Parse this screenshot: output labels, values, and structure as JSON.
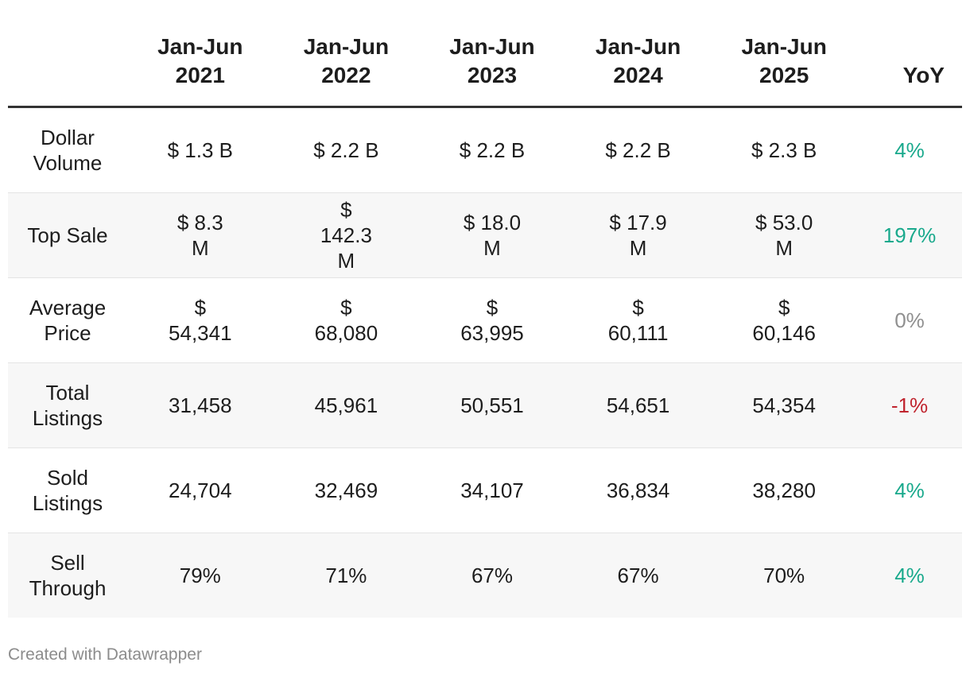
{
  "colors": {
    "positive": "#19a98c",
    "negative": "#c0252f",
    "neutral": "#8f8f8f",
    "text": "#1d1d1d"
  },
  "chart_data": {
    "type": "table",
    "columns": [
      {
        "line1": "Jan-Jun",
        "line2": "2021"
      },
      {
        "line1": "Jan-Jun",
        "line2": "2022"
      },
      {
        "line1": "Jan-Jun",
        "line2": "2023"
      },
      {
        "line1": "Jan-Jun",
        "line2": "2024"
      },
      {
        "line1": "Jan-Jun",
        "line2": "2025"
      }
    ],
    "yoy_header": "YoY",
    "rows": [
      {
        "label": "Dollar Volume",
        "values": [
          "$ 1.3 B",
          "$ 2.2 B",
          "$ 2.2 B",
          "$ 2.2 B",
          "$ 2.3 B"
        ],
        "yoy": "4%",
        "trend": "positive"
      },
      {
        "label": "Top Sale",
        "values": [
          "$ 8.3 M",
          "$ 142.3 M",
          "$ 18.0 M",
          "$ 17.9 M",
          "$ 53.0 M"
        ],
        "yoy": "197%",
        "trend": "positive"
      },
      {
        "label": "Average Price",
        "values": [
          "$ 54,341",
          "$ 68,080",
          "$ 63,995",
          "$ 60,111",
          "$ 60,146"
        ],
        "yoy": "0%",
        "trend": "neutral"
      },
      {
        "label": "Total Listings",
        "values": [
          "31,458",
          "45,961",
          "50,551",
          "54,651",
          "54,354"
        ],
        "yoy": "-1%",
        "trend": "negative"
      },
      {
        "label": "Sold Listings",
        "values": [
          "24,704",
          "32,469",
          "34,107",
          "36,834",
          "38,280"
        ],
        "yoy": "4%",
        "trend": "positive"
      },
      {
        "label": "Sell Through",
        "values": [
          "79%",
          "71%",
          "67%",
          "67%",
          "70%"
        ],
        "yoy": "4%",
        "trend": "positive"
      }
    ]
  },
  "footer": {
    "credit": "Created with Datawrapper"
  }
}
